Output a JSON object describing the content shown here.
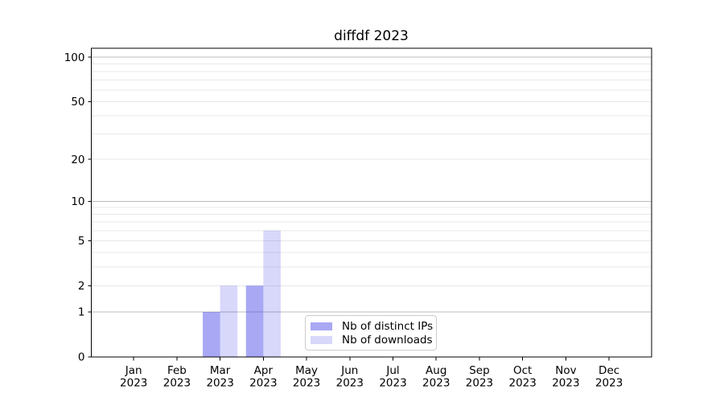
{
  "chart_data": {
    "type": "bar",
    "title": "diffdf 2023",
    "categories": [
      "Jan",
      "Feb",
      "Mar",
      "Apr",
      "May",
      "Jun",
      "Jul",
      "Aug",
      "Sep",
      "Oct",
      "Nov",
      "Dec"
    ],
    "category_year": "2023",
    "series": [
      {
        "name": "Nb of distinct IPs",
        "color": "rgba(25,25,230,0.38)",
        "values": [
          0,
          0,
          1,
          2,
          0,
          0,
          0,
          0,
          0,
          0,
          0,
          0
        ]
      },
      {
        "name": "Nb of downloads",
        "color": "rgba(25,25,230,0.17)",
        "values": [
          0,
          0,
          2,
          6,
          0,
          0,
          0,
          0,
          0,
          0,
          0,
          0
        ]
      }
    ],
    "yscale": "log1p",
    "ylim": [
      0,
      115
    ],
    "yticks_labeled": [
      0,
      1,
      2,
      5,
      10,
      20,
      50,
      100
    ],
    "gridlines_major": [
      1,
      10,
      100
    ],
    "gridlines_minor": [
      2,
      3,
      4,
      5,
      6,
      7,
      8,
      9,
      20,
      30,
      40,
      50,
      60,
      70,
      80,
      90
    ],
    "grid": "horizontal",
    "legend_position": "lower center inside",
    "colors": {
      "grid_major": "#bdbdbd",
      "grid_minor": "#e8e8e8",
      "axis_spine": "#000000",
      "tick_text": "#000000",
      "background": "#ffffff",
      "legend_border": "#cccccc"
    }
  }
}
